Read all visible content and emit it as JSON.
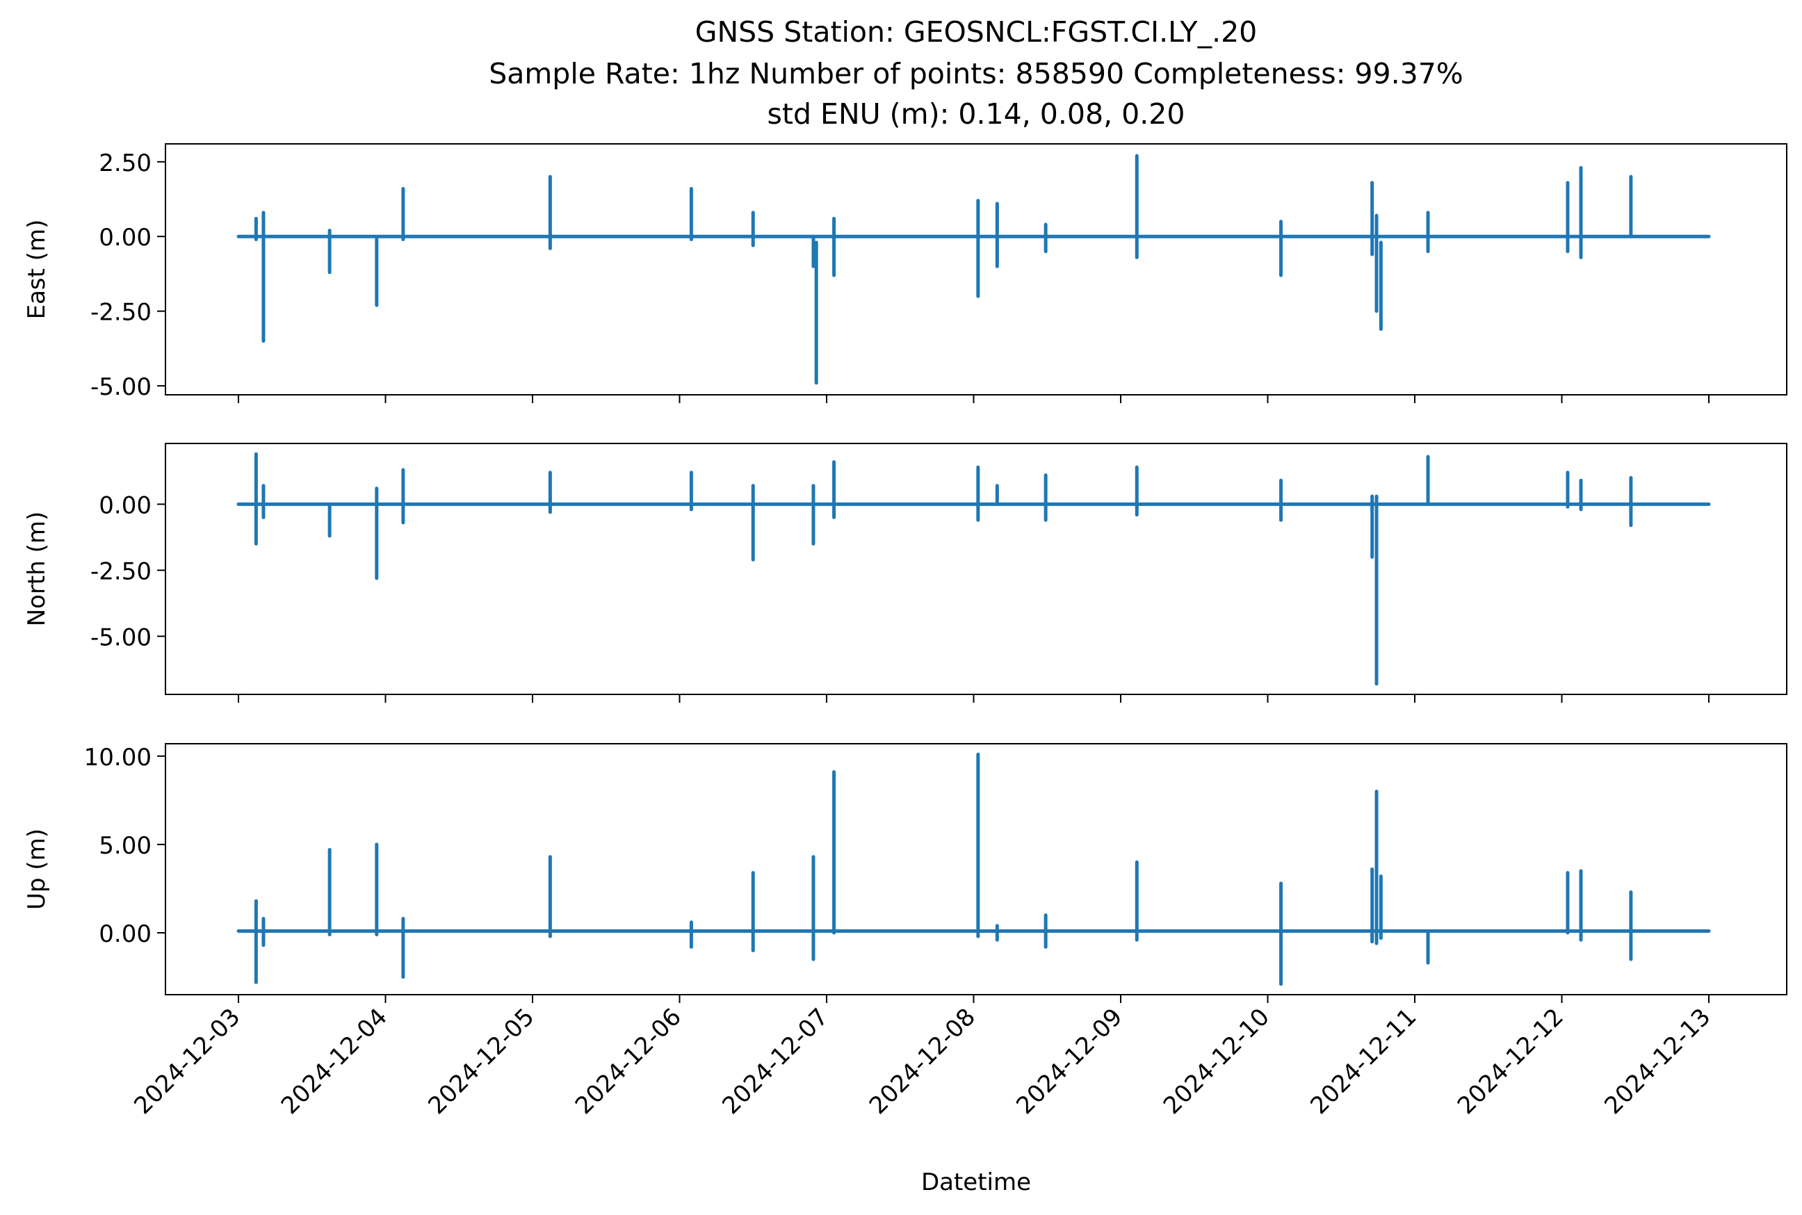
{
  "chart_data": {
    "type": "line",
    "title_lines": [
      "GNSS Station: GEOSNCL:FGST.CI.LY_.20",
      "Sample Rate: 1hz   Number of points: 858590    Completeness:  99.37%",
      "std ENU (m):  0.14, 0.08, 0.20"
    ],
    "xlabel": "Datetime",
    "x_ticks": [
      "2024-12-03",
      "2024-12-04",
      "2024-12-05",
      "2024-12-06",
      "2024-12-07",
      "2024-12-08",
      "2024-12-09",
      "2024-12-10",
      "2024-12-11",
      "2024-12-12",
      "2024-12-13"
    ],
    "x_range": [
      "2024-12-03",
      "2024-12-13"
    ],
    "line_color": "#1f77b4",
    "panels": [
      {
        "ylabel": "East (m)",
        "ylim": [
          -5.3,
          3.1
        ],
        "y_ticks": [
          2.5,
          0,
          -2.5,
          -5
        ],
        "y_tick_labels": [
          "2.50",
          "0.00",
          "-2.50",
          "-5.00"
        ],
        "baseline": 0.0,
        "spikes": [
          {
            "t": 0.12,
            "min": -0.1,
            "max": 0.6
          },
          {
            "t": 0.17,
            "min": -3.5,
            "max": 0.8
          },
          {
            "t": 0.62,
            "min": -1.2,
            "max": 0.2
          },
          {
            "t": 0.94,
            "min": -2.3,
            "max": -0.1
          },
          {
            "t": 1.12,
            "min": -0.1,
            "max": 1.6
          },
          {
            "t": 2.12,
            "min": -0.4,
            "max": 2.0
          },
          {
            "t": 3.08,
            "min": -0.1,
            "max": 1.6
          },
          {
            "t": 3.5,
            "min": -0.3,
            "max": 0.8
          },
          {
            "t": 3.91,
            "min": -1.0,
            "max": 0.0
          },
          {
            "t": 3.93,
            "min": -4.9,
            "max": -0.2
          },
          {
            "t": 4.05,
            "min": -1.3,
            "max": 0.6
          },
          {
            "t": 5.03,
            "min": -2.0,
            "max": 1.2
          },
          {
            "t": 5.16,
            "min": -1.0,
            "max": 1.1
          },
          {
            "t": 5.49,
            "min": -0.5,
            "max": 0.4
          },
          {
            "t": 6.11,
            "min": -0.7,
            "max": 2.7
          },
          {
            "t": 7.09,
            "min": -1.3,
            "max": 0.5
          },
          {
            "t": 7.71,
            "min": -0.6,
            "max": 1.8
          },
          {
            "t": 7.74,
            "min": -2.5,
            "max": 0.7
          },
          {
            "t": 7.77,
            "min": -3.1,
            "max": -0.2
          },
          {
            "t": 8.09,
            "min": -0.5,
            "max": 0.8
          },
          {
            "t": 9.04,
            "min": -0.5,
            "max": 1.8
          },
          {
            "t": 9.13,
            "min": -0.7,
            "max": 2.3
          },
          {
            "t": 9.47,
            "min": 0.0,
            "max": 2.0
          }
        ]
      },
      {
        "ylabel": "North (m)",
        "ylim": [
          -7.2,
          2.3
        ],
        "y_ticks": [
          0,
          -2.5,
          -5
        ],
        "y_tick_labels": [
          "0.00",
          "-2.50",
          "-5.00"
        ],
        "baseline": 0.0,
        "spikes": [
          {
            "t": 0.12,
            "min": -1.5,
            "max": 1.9
          },
          {
            "t": 0.17,
            "min": -0.5,
            "max": 0.7
          },
          {
            "t": 0.62,
            "min": -1.2,
            "max": 0.0
          },
          {
            "t": 0.94,
            "min": -2.8,
            "max": 0.6
          },
          {
            "t": 1.12,
            "min": -0.7,
            "max": 1.3
          },
          {
            "t": 2.12,
            "min": -0.3,
            "max": 1.2
          },
          {
            "t": 3.08,
            "min": -0.2,
            "max": 1.2
          },
          {
            "t": 3.5,
            "min": -2.1,
            "max": 0.7
          },
          {
            "t": 3.91,
            "min": -1.5,
            "max": 0.7
          },
          {
            "t": 4.05,
            "min": -0.5,
            "max": 1.6
          },
          {
            "t": 5.03,
            "min": -0.6,
            "max": 1.4
          },
          {
            "t": 5.16,
            "min": 0.0,
            "max": 0.7
          },
          {
            "t": 5.49,
            "min": -0.6,
            "max": 1.1
          },
          {
            "t": 6.11,
            "min": -0.4,
            "max": 1.4
          },
          {
            "t": 7.09,
            "min": -0.6,
            "max": 0.9
          },
          {
            "t": 7.71,
            "min": -2.0,
            "max": 0.3
          },
          {
            "t": 7.74,
            "min": -6.8,
            "max": 0.3
          },
          {
            "t": 8.09,
            "min": 0.0,
            "max": 1.8
          },
          {
            "t": 9.04,
            "min": -0.1,
            "max": 1.2
          },
          {
            "t": 9.13,
            "min": -0.2,
            "max": 0.9
          },
          {
            "t": 9.47,
            "min": -0.8,
            "max": 1.0
          }
        ]
      },
      {
        "ylabel": "Up (m)",
        "ylim": [
          -3.5,
          10.7
        ],
        "y_ticks": [
          10,
          5,
          0
        ],
        "y_tick_labels": [
          "10.00",
          "5.00",
          "0.00"
        ],
        "baseline": 0.1,
        "spikes": [
          {
            "t": 0.12,
            "min": -2.8,
            "max": 1.8
          },
          {
            "t": 0.17,
            "min": -0.7,
            "max": 0.8
          },
          {
            "t": 0.62,
            "min": -0.1,
            "max": 4.7
          },
          {
            "t": 0.94,
            "min": -0.1,
            "max": 5.0
          },
          {
            "t": 1.12,
            "min": -2.5,
            "max": 0.8
          },
          {
            "t": 2.12,
            "min": -0.2,
            "max": 4.3
          },
          {
            "t": 3.08,
            "min": -0.8,
            "max": 0.6
          },
          {
            "t": 3.5,
            "min": -1.0,
            "max": 3.4
          },
          {
            "t": 3.91,
            "min": -1.5,
            "max": 4.3
          },
          {
            "t": 4.05,
            "min": 0.0,
            "max": 9.1
          },
          {
            "t": 5.03,
            "min": -0.2,
            "max": 10.1
          },
          {
            "t": 5.16,
            "min": -0.4,
            "max": 0.4
          },
          {
            "t": 5.49,
            "min": -0.8,
            "max": 1.0
          },
          {
            "t": 6.11,
            "min": -0.4,
            "max": 4.0
          },
          {
            "t": 7.09,
            "min": -2.9,
            "max": 2.8
          },
          {
            "t": 7.71,
            "min": -0.5,
            "max": 3.6
          },
          {
            "t": 7.74,
            "min": -0.6,
            "max": 8.0
          },
          {
            "t": 7.77,
            "min": -0.3,
            "max": 3.2
          },
          {
            "t": 8.09,
            "min": -1.7,
            "max": 0.0
          },
          {
            "t": 9.04,
            "min": 0.0,
            "max": 3.4
          },
          {
            "t": 9.13,
            "min": -0.4,
            "max": 3.5
          },
          {
            "t": 9.47,
            "min": -1.5,
            "max": 2.3
          }
        ]
      }
    ]
  }
}
